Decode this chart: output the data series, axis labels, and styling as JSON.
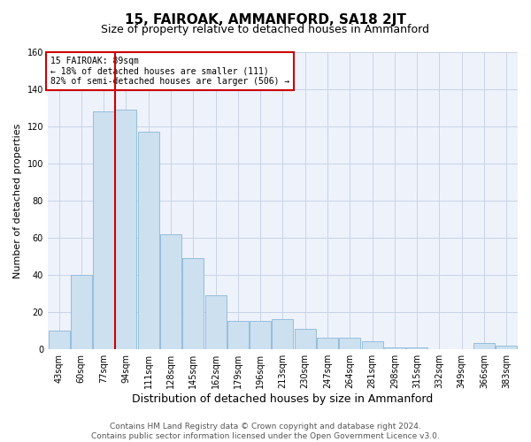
{
  "title": "15, FAIROAK, AMMANFORD, SA18 2JT",
  "subtitle": "Size of property relative to detached houses in Ammanford",
  "xlabel": "Distribution of detached houses by size in Ammanford",
  "ylabel": "Number of detached properties",
  "footer_line1": "Contains HM Land Registry data © Crown copyright and database right 2024.",
  "footer_line2": "Contains public sector information licensed under the Open Government Licence v3.0.",
  "annotation_line1": "15 FAIROAK: 89sqm",
  "annotation_line2": "← 18% of detached houses are smaller (111)",
  "annotation_line3": "82% of semi-detached houses are larger (506) →",
  "categories": [
    "43sqm",
    "60sqm",
    "77sqm",
    "94sqm",
    "111sqm",
    "128sqm",
    "145sqm",
    "162sqm",
    "179sqm",
    "196sqm",
    "213sqm",
    "230sqm",
    "247sqm",
    "264sqm",
    "281sqm",
    "298sqm",
    "315sqm",
    "332sqm",
    "349sqm",
    "366sqm",
    "383sqm"
  ],
  "values": [
    10,
    40,
    128,
    129,
    117,
    62,
    49,
    29,
    15,
    15,
    16,
    11,
    6,
    6,
    4,
    1,
    1,
    0,
    0,
    3,
    2
  ],
  "bar_color": "#cce0f0",
  "bar_edge_color": "#8ab8d8",
  "vline_color": "#cc0000",
  "vline_x_index": 2.5,
  "ylim": [
    0,
    160
  ],
  "yticks": [
    0,
    20,
    40,
    60,
    80,
    100,
    120,
    140,
    160
  ],
  "grid_color": "#c8d4e8",
  "bg_color": "#eef2fb",
  "annotation_box_color": "#cc0000",
  "title_fontsize": 11,
  "subtitle_fontsize": 9,
  "xlabel_fontsize": 9,
  "ylabel_fontsize": 8,
  "tick_fontsize": 7,
  "footer_fontsize": 6.5
}
